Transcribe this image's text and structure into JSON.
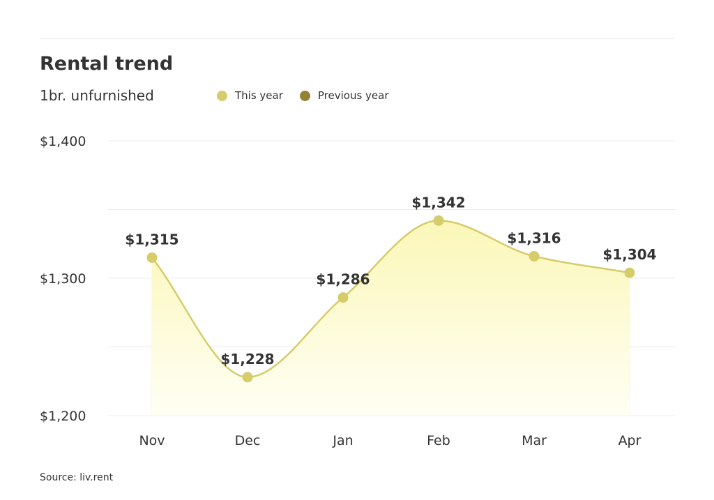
{
  "title": "Rental trend",
  "subtitle": "1br. unfurnished",
  "legend": [
    {
      "label": "This year",
      "color": "#d6cc6a"
    },
    {
      "label": "Previous year",
      "color": "#948336"
    }
  ],
  "source": "Source: liv.rent",
  "chart_data": {
    "type": "area",
    "categories": [
      "Nov",
      "Dec",
      "Jan",
      "Feb",
      "Mar",
      "Apr"
    ],
    "series": [
      {
        "name": "This year",
        "values": [
          1315,
          1228,
          1286,
          1342,
          1316,
          1304
        ],
        "data_labels": [
          "$1,315",
          "$1,228",
          "$1,286",
          "$1,342",
          "$1,316",
          "$1,304"
        ]
      }
    ],
    "ylim": [
      1200,
      1400
    ],
    "y_ticks": [
      1200,
      1300,
      1400
    ],
    "y_tick_labels": [
      "$1,200",
      "$1,300",
      "$1,400"
    ],
    "y_gridlines": [
      1200,
      1250,
      1300,
      1350,
      1400
    ],
    "grid": true,
    "legend_position": "top",
    "colors": {
      "line": "#d6cc6a",
      "marker": "#d6cc6a",
      "fill_top": "#fbf7b8",
      "fill_bottom": "#fffff4",
      "grid": "#ececec"
    }
  }
}
